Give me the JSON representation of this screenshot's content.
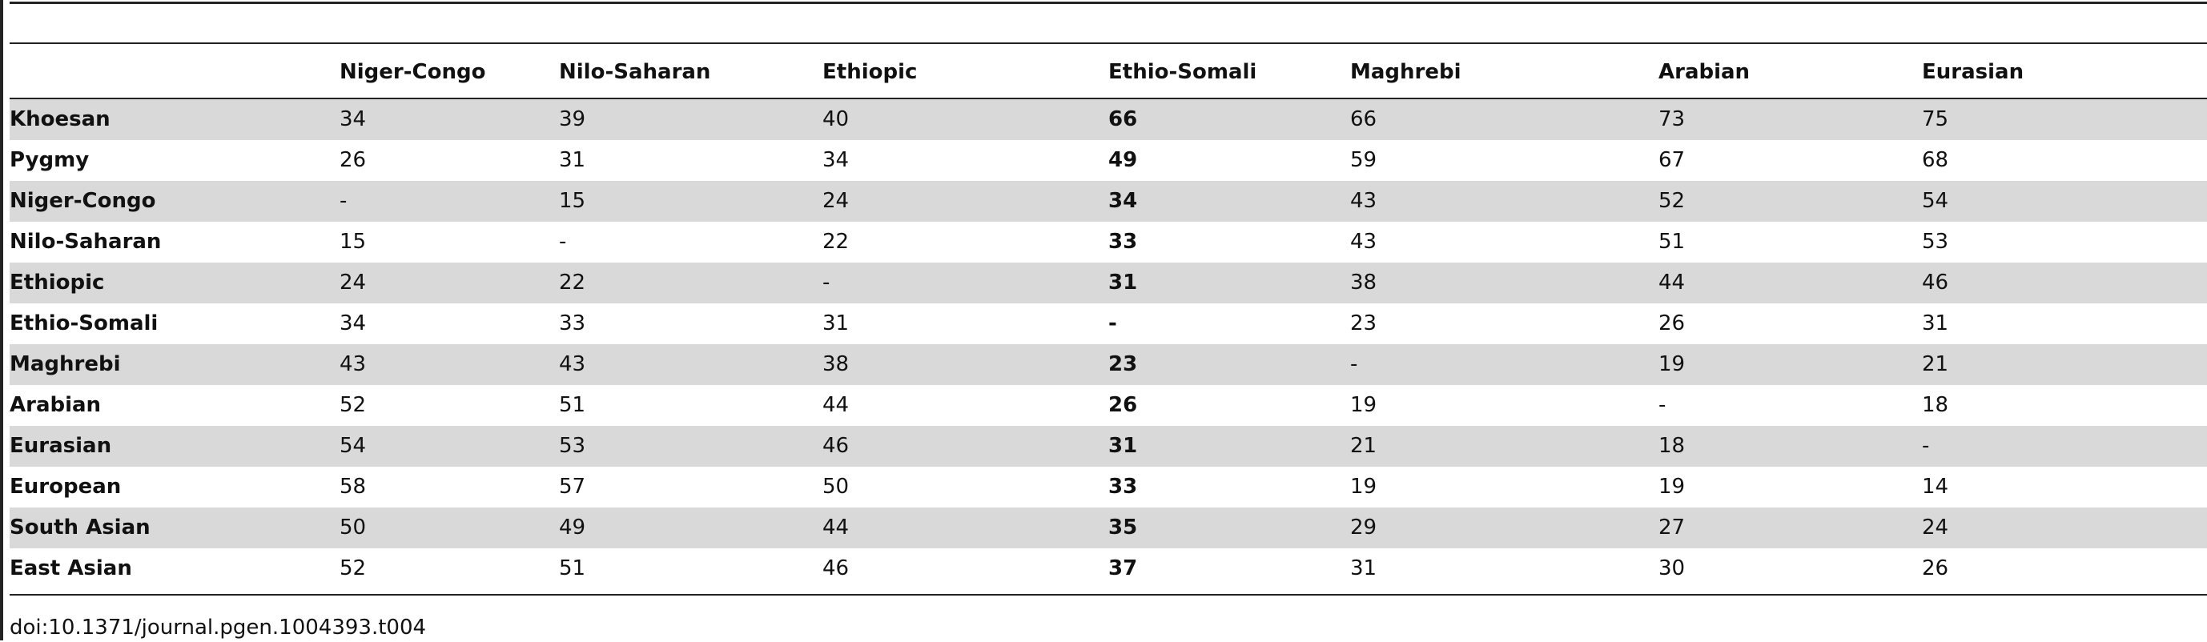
{
  "table": {
    "header": [
      "Niger-Congo",
      "Nilo-Saharan",
      "Ethiopic",
      "Ethio-Somali",
      "Maghrebi",
      "Arabian",
      "Eurasian"
    ],
    "rows": [
      {
        "label": "Khoesan",
        "values": [
          34,
          39,
          40,
          66,
          66,
          73,
          75
        ]
      },
      {
        "label": "Pygmy",
        "values": [
          26,
          31,
          34,
          49,
          59,
          67,
          68
        ]
      },
      {
        "label": "Niger-Congo",
        "values": [
          "-",
          15,
          24,
          34,
          43,
          52,
          54
        ]
      },
      {
        "label": "Nilo-Saharan",
        "values": [
          15,
          "-",
          22,
          33,
          43,
          51,
          53
        ]
      },
      {
        "label": "Ethiopic",
        "values": [
          24,
          22,
          "-",
          31,
          38,
          44,
          46
        ]
      },
      {
        "label": "Ethio-Somali",
        "values": [
          34,
          33,
          31,
          "-",
          23,
          26,
          31
        ]
      },
      {
        "label": "Maghrebi",
        "values": [
          43,
          43,
          38,
          23,
          "-",
          19,
          21
        ]
      },
      {
        "label": "Arabian",
        "values": [
          52,
          51,
          44,
          26,
          19,
          "-",
          18
        ]
      },
      {
        "label": "Eurasian",
        "values": [
          54,
          53,
          46,
          31,
          21,
          18,
          "-"
        ]
      },
      {
        "label": "European",
        "values": [
          58,
          57,
          50,
          33,
          19,
          19,
          14
        ]
      },
      {
        "label": "South Asian",
        "values": [
          50,
          49,
          44,
          35,
          29,
          27,
          24
        ]
      },
      {
        "label": "East Asian",
        "values": [
          52,
          51,
          46,
          37,
          31,
          30,
          26
        ]
      }
    ]
  },
  "footer": {
    "doi": "doi:10.1371/journal.pgen.1004393.t004"
  }
}
